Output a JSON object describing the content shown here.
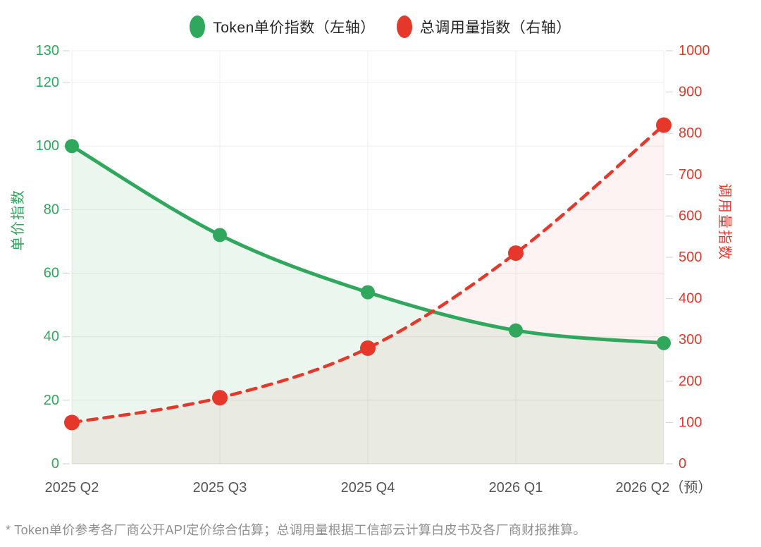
{
  "legend": {
    "items": [
      {
        "label": "Token单价指数（左轴）",
        "color": "#2fa75c"
      },
      {
        "label": "总调用量指数（右轴）",
        "color": "#e5372a"
      }
    ]
  },
  "chart_data": {
    "type": "line",
    "categories": [
      "2025 Q2",
      "2025 Q3",
      "2025 Q4",
      "2026 Q1",
      "2026 Q2（预）"
    ],
    "series": [
      {
        "name": "Token单价指数（左轴）",
        "axis": "left",
        "values": [
          100,
          72,
          54,
          42,
          38
        ],
        "color": "#2fa75c",
        "style": "solid",
        "point_radius": 10,
        "area_fill": "rgba(47, 167, 92, 0.10)"
      },
      {
        "name": "总调用量指数（右轴）",
        "axis": "right",
        "values": [
          100,
          160,
          280,
          510,
          820
        ],
        "color": "#e5372a",
        "style": "dashed",
        "point_radius": 11,
        "area_fill": "rgba(229, 55, 42, 0.06)"
      }
    ],
    "left_axis": {
      "label": "单价指数",
      "min": 0,
      "max": 130,
      "ticks": [
        0,
        20,
        40,
        60,
        80,
        100,
        120,
        130
      ],
      "color": "#2fa75c"
    },
    "right_axis": {
      "label": "调用量指数",
      "min": 0,
      "max": 1000,
      "ticks": [
        0,
        100,
        200,
        300,
        400,
        500,
        600,
        700,
        800,
        900,
        1000
      ],
      "color": "#e5372a"
    },
    "grid": true,
    "legend_position": "top",
    "smooth": true
  },
  "footnote": "* Token单价参考各厂商公开API定价综合估算；总调用量根据工信部云计算白皮书及各厂商财报推算。"
}
